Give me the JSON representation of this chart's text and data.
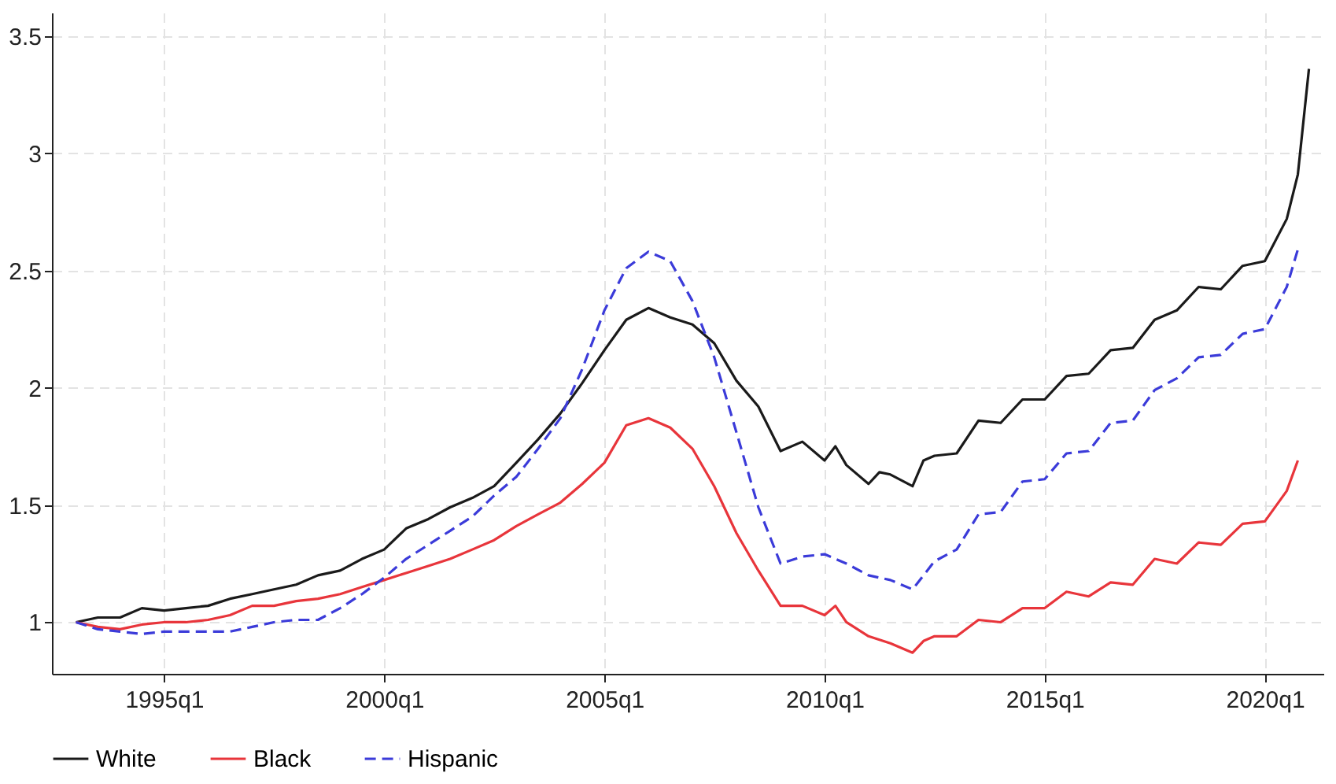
{
  "chart_data": {
    "type": "line",
    "series": [
      {
        "name": "White",
        "color": "#1a1a1a",
        "line_style": "solid",
        "x": [
          "1993-01",
          "1993-07",
          "1994-01",
          "1994-07",
          "1995-01",
          "1995-07",
          "1996-01",
          "1996-07",
          "1997-01",
          "1997-07",
          "1998-01",
          "1998-07",
          "1999-01",
          "1999-07",
          "2000-01",
          "2000-07",
          "2001-01",
          "2001-07",
          "2002-01",
          "2002-07",
          "2003-01",
          "2003-07",
          "2004-01",
          "2004-07",
          "2005-01",
          "2005-07",
          "2006-01",
          "2006-07",
          "2007-01",
          "2007-07",
          "2008-01",
          "2008-07",
          "2009-01",
          "2009-07",
          "2010-01",
          "2010-04",
          "2010-07",
          "2011-01",
          "2011-04",
          "2011-07",
          "2012-01",
          "2012-04",
          "2012-07",
          "2013-01",
          "2013-07",
          "2014-01",
          "2014-07",
          "2015-01",
          "2015-07",
          "2016-01",
          "2016-07",
          "2017-01",
          "2017-07",
          "2018-01",
          "2018-07",
          "2019-01",
          "2019-07",
          "2020-01",
          "2020-07",
          "2020-10",
          "2021-01"
        ],
        "values": [
          1.0,
          1.02,
          1.02,
          1.06,
          1.05,
          1.06,
          1.07,
          1.1,
          1.12,
          1.14,
          1.16,
          1.2,
          1.22,
          1.27,
          1.31,
          1.4,
          1.44,
          1.49,
          1.53,
          1.58,
          1.68,
          1.78,
          1.89,
          2.02,
          2.16,
          2.29,
          2.34,
          2.3,
          2.27,
          2.19,
          2.03,
          1.92,
          1.73,
          1.77,
          1.69,
          1.75,
          1.67,
          1.59,
          1.64,
          1.63,
          1.58,
          1.69,
          1.71,
          1.72,
          1.86,
          1.85,
          1.95,
          1.95,
          2.05,
          2.06,
          2.16,
          2.17,
          2.29,
          2.33,
          2.43,
          2.42,
          2.52,
          2.54,
          2.72,
          2.91,
          3.36
        ]
      },
      {
        "name": "Black",
        "color": "#e8353b",
        "line_style": "solid",
        "x": [
          "1993-01",
          "1993-07",
          "1994-01",
          "1994-07",
          "1995-01",
          "1995-07",
          "1996-01",
          "1996-07",
          "1997-01",
          "1997-07",
          "1998-01",
          "1998-07",
          "1999-01",
          "1999-07",
          "2000-01",
          "2000-07",
          "2001-01",
          "2001-07",
          "2002-01",
          "2002-07",
          "2003-01",
          "2003-07",
          "2004-01",
          "2004-07",
          "2005-01",
          "2005-07",
          "2006-01",
          "2006-07",
          "2007-01",
          "2007-07",
          "2008-01",
          "2008-07",
          "2009-01",
          "2009-07",
          "2010-01",
          "2010-04",
          "2010-07",
          "2011-01",
          "2011-07",
          "2012-01",
          "2012-04",
          "2012-07",
          "2013-01",
          "2013-07",
          "2014-01",
          "2014-07",
          "2015-01",
          "2015-07",
          "2016-01",
          "2016-07",
          "2017-01",
          "2017-07",
          "2018-01",
          "2018-07",
          "2019-01",
          "2019-07",
          "2020-01",
          "2020-07",
          "2020-10"
        ],
        "values": [
          1.0,
          0.98,
          0.97,
          0.99,
          1.0,
          1.0,
          1.01,
          1.03,
          1.07,
          1.07,
          1.09,
          1.1,
          1.12,
          1.15,
          1.18,
          1.21,
          1.24,
          1.27,
          1.31,
          1.35,
          1.41,
          1.46,
          1.51,
          1.59,
          1.68,
          1.84,
          1.87,
          1.83,
          1.74,
          1.58,
          1.38,
          1.22,
          1.07,
          1.07,
          1.03,
          1.07,
          1.0,
          0.94,
          0.91,
          0.87,
          0.92,
          0.94,
          0.94,
          1.01,
          1.0,
          1.06,
          1.06,
          1.13,
          1.11,
          1.17,
          1.16,
          1.27,
          1.25,
          1.34,
          1.33,
          1.42,
          1.43,
          1.56,
          1.69
        ]
      },
      {
        "name": "Hispanic",
        "color": "#3b3bd9",
        "line_style": "dashed",
        "x": [
          "1993-01",
          "1993-07",
          "1994-01",
          "1994-07",
          "1995-01",
          "1995-07",
          "1996-01",
          "1996-07",
          "1997-01",
          "1997-07",
          "1998-01",
          "1998-07",
          "1999-01",
          "1999-07",
          "2000-01",
          "2000-07",
          "2001-01",
          "2001-07",
          "2002-01",
          "2002-07",
          "2003-01",
          "2003-07",
          "2004-01",
          "2004-07",
          "2005-01",
          "2005-07",
          "2006-01",
          "2006-07",
          "2007-01",
          "2007-07",
          "2008-01",
          "2008-07",
          "2009-01",
          "2009-07",
          "2010-01",
          "2010-07",
          "2011-01",
          "2011-07",
          "2012-01",
          "2012-07",
          "2013-01",
          "2013-07",
          "2014-01",
          "2014-07",
          "2015-01",
          "2015-07",
          "2016-01",
          "2016-07",
          "2017-01",
          "2017-07",
          "2018-01",
          "2018-07",
          "2019-01",
          "2019-07",
          "2020-01",
          "2020-07",
          "2020-10"
        ],
        "values": [
          1.0,
          0.97,
          0.96,
          0.95,
          0.96,
          0.96,
          0.96,
          0.96,
          0.98,
          1.0,
          1.01,
          1.01,
          1.06,
          1.12,
          1.19,
          1.27,
          1.33,
          1.39,
          1.45,
          1.54,
          1.62,
          1.74,
          1.87,
          2.08,
          2.33,
          2.51,
          2.58,
          2.54,
          2.37,
          2.13,
          1.81,
          1.49,
          1.25,
          1.28,
          1.29,
          1.25,
          1.2,
          1.18,
          1.14,
          1.26,
          1.31,
          1.46,
          1.47,
          1.6,
          1.61,
          1.72,
          1.73,
          1.85,
          1.86,
          1.99,
          2.04,
          2.13,
          2.14,
          2.23,
          2.25,
          2.43,
          2.59
        ]
      }
    ],
    "xlim": [
      "1992-06-15",
      "2021-05-01"
    ],
    "xticks": [
      {
        "value": "1995-01",
        "label": "1995q1"
      },
      {
        "value": "2000-01",
        "label": "2000q1"
      },
      {
        "value": "2005-01",
        "label": "2005q1"
      },
      {
        "value": "2010-01",
        "label": "2010q1"
      },
      {
        "value": "2015-01",
        "label": "2015q1"
      },
      {
        "value": "2020-01",
        "label": "2020q1"
      }
    ],
    "ylim": [
      0.78,
      3.6
    ],
    "yticks": [
      1,
      1.5,
      2,
      2.5,
      3,
      3.5
    ],
    "grid": true,
    "legend": "bottom"
  }
}
